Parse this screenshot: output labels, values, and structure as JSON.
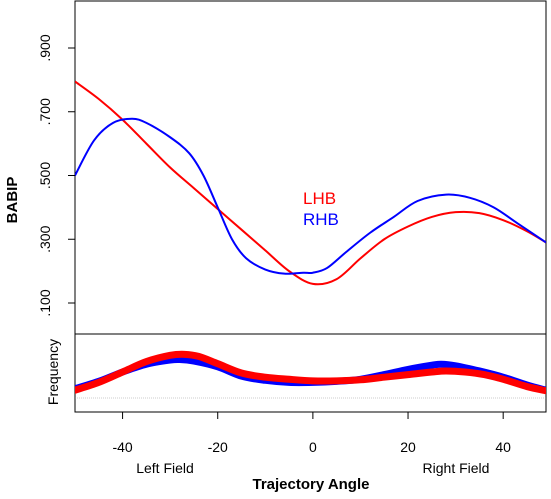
{
  "chart_data": {
    "type": "line",
    "title": "",
    "xlabel": "Trajectory Angle",
    "ylabel": "BABIP",
    "xlim": [
      -50,
      49
    ],
    "ylim": [
      0.0,
      1.0
    ],
    "x_ticks": [
      -40,
      -20,
      0,
      20,
      40
    ],
    "x_tick_labels": [
      "-40",
      "-20",
      "0",
      "20",
      "40"
    ],
    "y_ticks": [
      0.1,
      0.3,
      0.5,
      0.7,
      0.9
    ],
    "y_tick_labels": [
      ".100",
      ".300",
      ".500",
      ".700",
      ".900"
    ],
    "x_region_labels": {
      "left": "Left Field",
      "right": "Right Field"
    },
    "legend": {
      "position": "center",
      "entries": [
        "LHB",
        "RHB"
      ]
    },
    "colors": {
      "LHB": "#ff0000",
      "RHB": "#0000ff"
    },
    "series": [
      {
        "name": "LHB",
        "color": "#ff0000",
        "x": [
          -50,
          -45,
          -40,
          -35,
          -30,
          -25,
          -20,
          -15,
          -10,
          -5,
          0,
          5,
          10,
          15,
          20,
          25,
          30,
          35,
          40,
          45,
          49
        ],
        "y": [
          0.795,
          0.74,
          0.675,
          0.6,
          0.525,
          0.46,
          0.395,
          0.33,
          0.265,
          0.2,
          0.16,
          0.175,
          0.24,
          0.3,
          0.34,
          0.37,
          0.385,
          0.382,
          0.36,
          0.325,
          0.29
        ]
      },
      {
        "name": "RHB",
        "color": "#0000ff",
        "x": [
          -50,
          -46,
          -42,
          -38,
          -35,
          -30,
          -26,
          -23,
          -20,
          -17,
          -14,
          -10,
          -6,
          -2,
          0,
          3,
          7,
          12,
          17,
          22,
          28,
          33,
          38,
          43,
          49
        ],
        "y": [
          0.5,
          0.61,
          0.665,
          0.678,
          0.665,
          0.62,
          0.57,
          0.5,
          0.4,
          0.3,
          0.24,
          0.205,
          0.192,
          0.195,
          0.195,
          0.21,
          0.26,
          0.32,
          0.37,
          0.42,
          0.44,
          0.43,
          0.4,
          0.35,
          0.29
        ]
      }
    ],
    "frequency_panel": {
      "ylabel": "Frequency",
      "series": [
        {
          "name": "LHB",
          "color": "#ff0000",
          "x": [
            -50,
            -45,
            -40,
            -35,
            -30,
            -27,
            -24,
            -20,
            -15,
            -10,
            -5,
            0,
            5,
            10,
            15,
            20,
            25,
            28,
            32,
            36,
            40,
            45,
            49
          ],
          "y": [
            0.15,
            0.3,
            0.5,
            0.7,
            0.82,
            0.84,
            0.8,
            0.66,
            0.48,
            0.4,
            0.36,
            0.33,
            0.33,
            0.35,
            0.4,
            0.45,
            0.5,
            0.52,
            0.5,
            0.45,
            0.36,
            0.22,
            0.14
          ]
        },
        {
          "name": "RHB",
          "color": "#0000ff",
          "x": [
            -50,
            -45,
            -40,
            -35,
            -30,
            -28,
            -25,
            -20,
            -15,
            -10,
            -5,
            0,
            5,
            10,
            15,
            20,
            25,
            27,
            30,
            35,
            40,
            45,
            49
          ],
          "y": [
            0.18,
            0.32,
            0.5,
            0.65,
            0.73,
            0.74,
            0.71,
            0.6,
            0.42,
            0.34,
            0.3,
            0.3,
            0.32,
            0.36,
            0.45,
            0.55,
            0.63,
            0.65,
            0.62,
            0.52,
            0.4,
            0.25,
            0.15
          ]
        }
      ]
    }
  }
}
